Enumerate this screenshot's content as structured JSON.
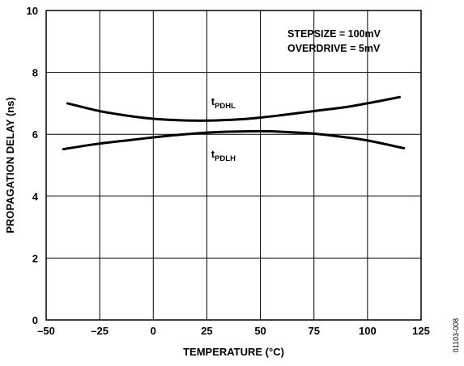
{
  "chart_data": {
    "type": "line",
    "title": "",
    "xlabel": "TEMPERATURE (°C)",
    "ylabel": "PROPAGATION DELAY (ns)",
    "xlim": [
      -50,
      125
    ],
    "ylim": [
      0,
      10
    ],
    "x_ticks": [
      -50,
      -25,
      0,
      25,
      50,
      75,
      100,
      125
    ],
    "x_tick_labels": [
      "–50",
      "–25",
      "0",
      "25",
      "50",
      "75",
      "100",
      "125"
    ],
    "y_ticks": [
      0,
      2,
      4,
      6,
      8,
      10
    ],
    "y_tick_labels": [
      "0",
      "2",
      "4",
      "6",
      "8",
      "10"
    ],
    "grid": true,
    "annotations": [
      "STEPSIZE = 100mV",
      "OVERDRIVE = 5mV"
    ],
    "figure_id": "01103-008",
    "series": [
      {
        "name": "tPDHL",
        "label_main": "t",
        "label_sub": "PDHL",
        "x": [
          -40,
          -25,
          -10,
          0,
          10,
          20,
          30,
          40,
          50,
          60,
          75,
          90,
          100,
          115
        ],
        "y": [
          7.0,
          6.75,
          6.58,
          6.5,
          6.46,
          6.44,
          6.45,
          6.48,
          6.54,
          6.62,
          6.75,
          6.88,
          7.0,
          7.2
        ]
      },
      {
        "name": "tPDLH",
        "label_main": "t",
        "label_sub": "PDLH",
        "x": [
          -42,
          -25,
          -10,
          0,
          10,
          20,
          30,
          40,
          50,
          60,
          75,
          90,
          100,
          117
        ],
        "y": [
          5.52,
          5.7,
          5.82,
          5.9,
          5.97,
          6.03,
          6.07,
          6.09,
          6.1,
          6.08,
          6.02,
          5.9,
          5.8,
          5.55
        ]
      }
    ]
  }
}
